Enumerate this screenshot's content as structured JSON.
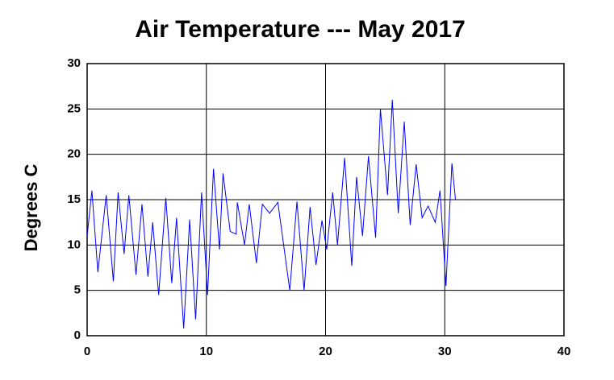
{
  "chart_data": {
    "type": "line",
    "title": "Air Temperature --- May 2017",
    "ylabel": "Degrees C",
    "xlim": [
      0,
      40
    ],
    "xticks": [
      0,
      10,
      20,
      30,
      40
    ],
    "ylim": [
      0,
      30
    ],
    "yticks": [
      0,
      5,
      10,
      15,
      20,
      25,
      30
    ],
    "grid": true,
    "x": [
      0,
      0.4,
      0.9,
      1.6,
      2.2,
      2.6,
      3.1,
      3.5,
      4.1,
      4.6,
      5.1,
      5.5,
      6.0,
      6.6,
      7.1,
      7.5,
      8.1,
      8.6,
      9.1,
      9.6,
      10.1,
      10.6,
      11.1,
      11.4,
      12.0,
      12.5,
      12.6,
      13.2,
      13.6,
      14.2,
      14.7,
      15.3,
      16.0,
      17.0,
      17.6,
      18.2,
      18.7,
      19.2,
      19.7,
      20.1,
      20.6,
      21.0,
      21.6,
      22.2,
      22.6,
      23.1,
      23.6,
      24.2,
      24.6,
      25.2,
      25.6,
      26.1,
      26.6,
      27.1,
      27.6,
      28.1,
      28.6,
      29.2,
      29.6,
      30.1,
      30.6,
      30.9
    ],
    "series": [
      {
        "name": "Air Temperature",
        "color": "#0000ff",
        "values": [
          11,
          16,
          7,
          15.5,
          6,
          15.8,
          9,
          15.5,
          6.7,
          14.5,
          6.5,
          12.5,
          4.5,
          15.2,
          5.8,
          13,
          0.8,
          12.8,
          1.8,
          15.8,
          4.5,
          18.4,
          9.5,
          17.9,
          11.5,
          11.2,
          14.7,
          10,
          14.5,
          8,
          14.5,
          13.5,
          14.7,
          5,
          14.8,
          5,
          14.2,
          7.8,
          12.7,
          9.5,
          15.8,
          10,
          19.6,
          7.7,
          17.5,
          11,
          19.8,
          10.8,
          25,
          15.5,
          26,
          13.5,
          23.6,
          12.2,
          18.9,
          13,
          14.3,
          12.5,
          16,
          5.5,
          19,
          15
        ]
      }
    ]
  }
}
